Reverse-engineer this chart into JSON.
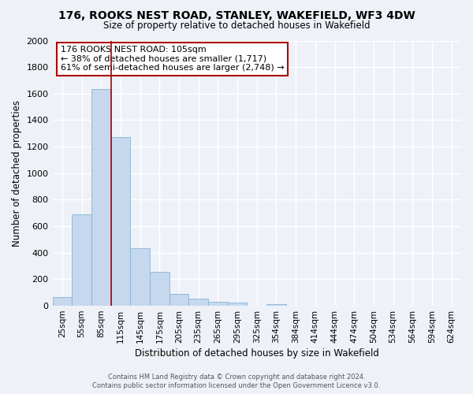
{
  "title": "176, ROOKS NEST ROAD, STANLEY, WAKEFIELD, WF3 4DW",
  "subtitle": "Size of property relative to detached houses in Wakefield",
  "xlabel": "Distribution of detached houses by size in Wakefield",
  "ylabel": "Number of detached properties",
  "bar_values": [
    65,
    690,
    1635,
    1275,
    435,
    255,
    90,
    52,
    32,
    22,
    0,
    12,
    0,
    0,
    0,
    0,
    0,
    0,
    0,
    0,
    0
  ],
  "bar_labels": [
    "25sqm",
    "55sqm",
    "85sqm",
    "115sqm",
    "145sqm",
    "175sqm",
    "205sqm",
    "235sqm",
    "265sqm",
    "295sqm",
    "325sqm",
    "354sqm",
    "384sqm",
    "414sqm",
    "444sqm",
    "474sqm",
    "504sqm",
    "534sqm",
    "564sqm",
    "594sqm",
    "624sqm"
  ],
  "bar_color": "#c5d8ed",
  "bar_edge_color": "#8ab4d4",
  "annotation_box_text": "176 ROOKS NEST ROAD: 105sqm\n← 38% of detached houses are smaller (1,717)\n61% of semi-detached houses are larger (2,748) →",
  "annotation_box_color": "white",
  "annotation_box_edge_color": "#aa0000",
  "vline_x": 2,
  "vline_color": "#aa0000",
  "ylim": [
    0,
    2000
  ],
  "yticks": [
    0,
    200,
    400,
    600,
    800,
    1000,
    1200,
    1400,
    1600,
    1800,
    2000
  ],
  "footer_line1": "Contains HM Land Registry data © Crown copyright and database right 2024.",
  "footer_line2": "Contains public sector information licensed under the Open Government Licence v3.0.",
  "background_color": "#eef2f8",
  "grid_color": "white",
  "n_bins": 21
}
